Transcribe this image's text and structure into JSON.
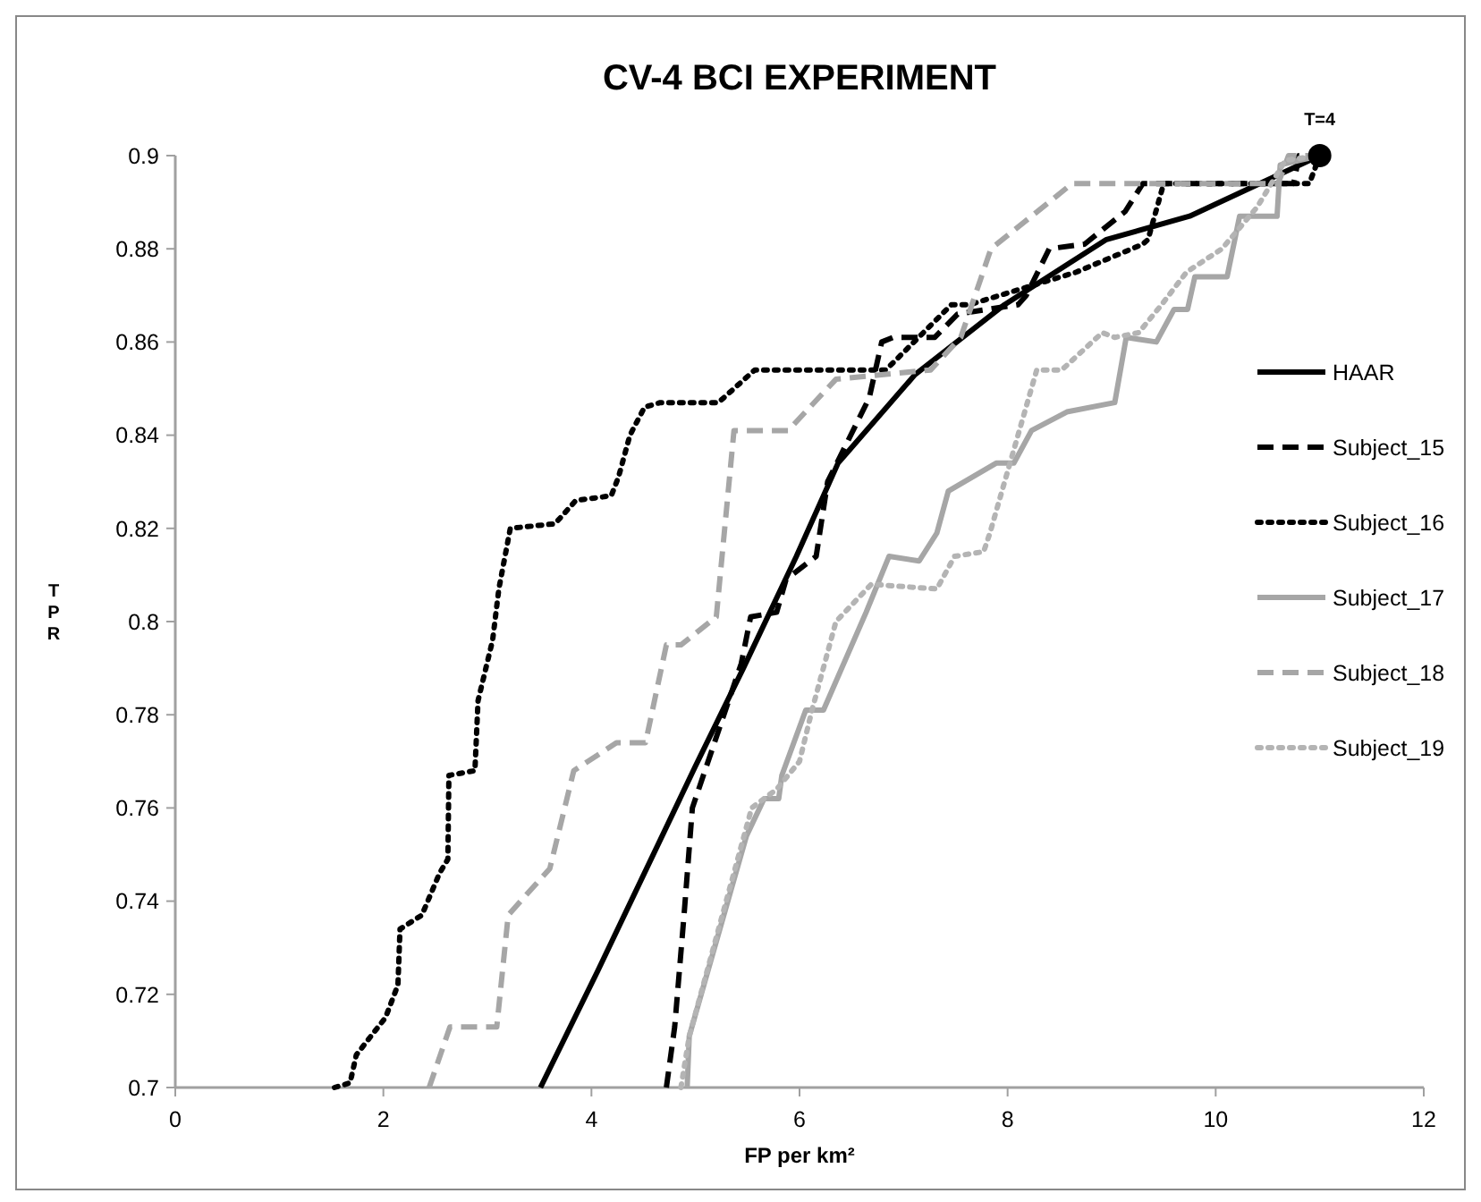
{
  "chart_data": {
    "type": "line",
    "title": "CV-4 BCI EXPERIMENT",
    "xlabel": "FP per km²",
    "ylabel": "TPR",
    "xlim": [
      0,
      12
    ],
    "ylim": [
      0.7,
      0.9
    ],
    "xticks": [
      0,
      2,
      4,
      6,
      8,
      10,
      12
    ],
    "yticks": [
      0.7,
      0.72,
      0.74,
      0.76,
      0.78,
      0.8,
      0.82,
      0.84,
      0.86,
      0.88,
      0.9
    ],
    "grid": false,
    "legend": "right",
    "marker": "none",
    "annotations": [
      {
        "text": "T=4",
        "x": 11,
        "y": 0.9
      }
    ],
    "series": [
      {
        "name": "HAAR",
        "color": "#000000",
        "line_style": "solid",
        "x": [
          3.51,
          4.06,
          5.0,
          5.46,
          5.97,
          6.37,
          7.11,
          7.97,
          8.6,
          8.95,
          9.75,
          11
        ],
        "values": [
          0.7,
          0.725,
          0.769,
          0.79,
          0.814,
          0.834,
          0.853,
          0.868,
          0.877,
          0.882,
          0.887,
          0.9
        ]
      },
      {
        "name": "Subject_15",
        "color": "#000000",
        "line_style": "dashed",
        "x": [
          4.72,
          4.8,
          4.89,
          4.97,
          5.44,
          5.53,
          5.78,
          5.87,
          6.16,
          6.27,
          6.67,
          6.79,
          6.9,
          7.3,
          7.52,
          8.1,
          8.18,
          8.4,
          8.74,
          9.13,
          9.3,
          10.75,
          10.8,
          11
        ],
        "values": [
          0.7,
          0.713,
          0.737,
          0.76,
          0.791,
          0.801,
          0.802,
          0.809,
          0.814,
          0.83,
          0.848,
          0.86,
          0.861,
          0.861,
          0.866,
          0.868,
          0.87,
          0.88,
          0.881,
          0.888,
          0.894,
          0.894,
          0.9,
          0.9
        ]
      },
      {
        "name": "Subject_16",
        "color": "#000000",
        "line_style": "dotted",
        "x": [
          1.53,
          1.68,
          1.74,
          2.02,
          2.14,
          2.16,
          2.37,
          2.54,
          2.62,
          2.63,
          2.88,
          2.91,
          3.05,
          3.11,
          3.22,
          3.65,
          3.85,
          4.19,
          4.26,
          4.37,
          4.51,
          4.66,
          5.22,
          5.57,
          6.72,
          6.83,
          7.46,
          7.63,
          8.66,
          9.3,
          9.35,
          9.5,
          10.9,
          11
        ],
        "values": [
          0.7,
          0.701,
          0.707,
          0.715,
          0.722,
          0.734,
          0.737,
          0.746,
          0.749,
          0.767,
          0.768,
          0.783,
          0.796,
          0.807,
          0.82,
          0.821,
          0.826,
          0.827,
          0.831,
          0.84,
          0.846,
          0.847,
          0.847,
          0.854,
          0.854,
          0.854,
          0.868,
          0.868,
          0.875,
          0.881,
          0.882,
          0.894,
          0.894,
          0.9
        ]
      },
      {
        "name": "Subject_17",
        "color": "#a6a6a6",
        "line_style": "solid",
        "x": [
          4.92,
          4.94,
          5.49,
          5.66,
          5.8,
          5.83,
          6.06,
          6.23,
          6.64,
          6.86,
          7.15,
          7.32,
          7.43,
          7.89,
          8.06,
          8.23,
          8.57,
          9.03,
          9.14,
          9.43,
          9.6,
          9.73,
          9.8,
          10.11,
          10.23,
          10.59,
          10.62,
          11
        ],
        "values": [
          0.7,
          0.711,
          0.754,
          0.762,
          0.762,
          0.767,
          0.781,
          0.781,
          0.802,
          0.814,
          0.813,
          0.819,
          0.828,
          0.834,
          0.834,
          0.841,
          0.845,
          0.847,
          0.861,
          0.86,
          0.867,
          0.867,
          0.874,
          0.874,
          0.887,
          0.887,
          0.898,
          0.9
        ]
      },
      {
        "name": "Subject_18",
        "color": "#a6a6a6",
        "line_style": "dashed",
        "x": [
          2.44,
          2.64,
          3.09,
          3.2,
          3.6,
          3.83,
          4.24,
          4.52,
          4.72,
          4.86,
          5.2,
          5.37,
          5.89,
          6.35,
          7.26,
          7.55,
          7.84,
          8.23,
          8.62,
          10.6,
          10.7,
          11
        ],
        "values": [
          0.7,
          0.713,
          0.713,
          0.737,
          0.747,
          0.768,
          0.774,
          0.774,
          0.795,
          0.795,
          0.801,
          0.841,
          0.841,
          0.852,
          0.854,
          0.861,
          0.88,
          0.887,
          0.894,
          0.894,
          0.9,
          0.9
        ]
      },
      {
        "name": "Subject_19",
        "color": "#b4b4b4",
        "line_style": "dotted",
        "x": [
          4.86,
          4.94,
          5.54,
          5.78,
          6.0,
          6.12,
          6.35,
          6.69,
          7.32,
          7.49,
          7.77,
          7.83,
          8.28,
          8.52,
          8.91,
          9.03,
          9.26,
          9.48,
          9.72,
          10.06,
          10.4,
          10.67,
          11
        ],
        "values": [
          0.7,
          0.711,
          0.76,
          0.764,
          0.77,
          0.781,
          0.8,
          0.808,
          0.807,
          0.814,
          0.815,
          0.819,
          0.854,
          0.854,
          0.862,
          0.861,
          0.862,
          0.868,
          0.875,
          0.88,
          0.889,
          0.899,
          0.9
        ]
      },
      {
        "type": "scatter",
        "marker": "circle",
        "color": "#000000",
        "x": [
          11
        ],
        "values": [
          0.9
        ]
      }
    ]
  }
}
